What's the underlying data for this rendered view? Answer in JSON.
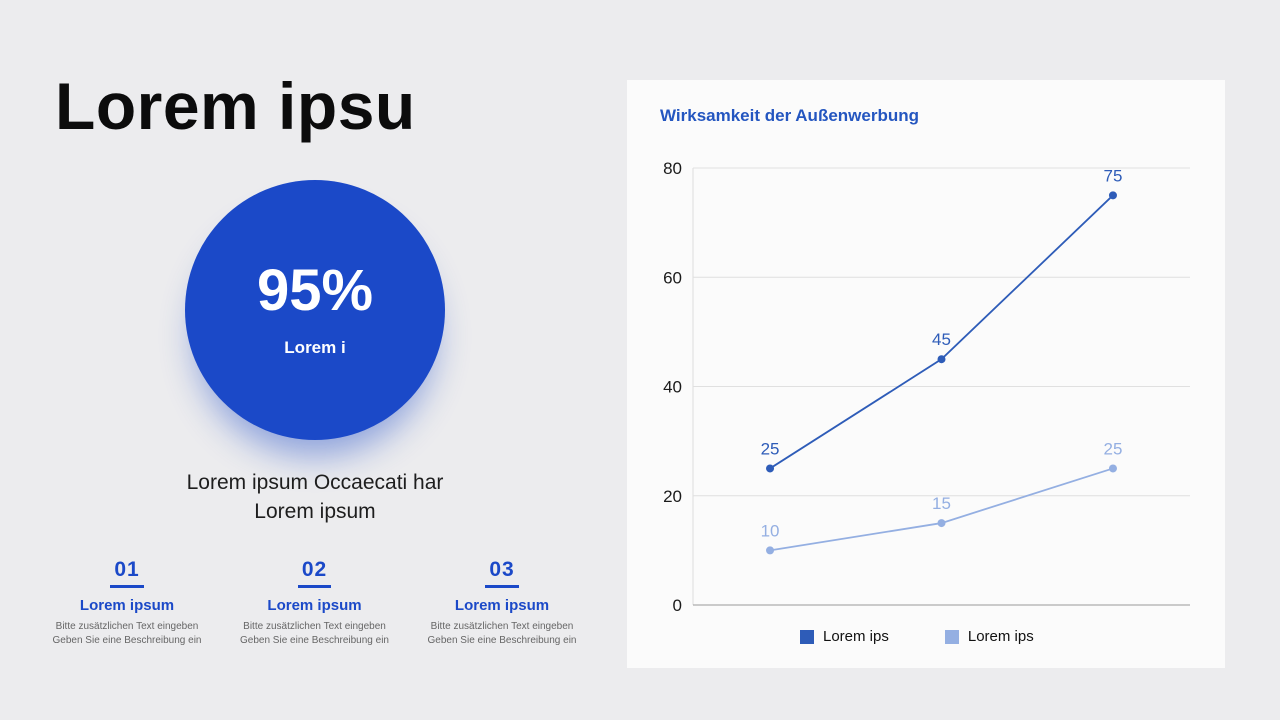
{
  "theme": {
    "accent": "#1b49c8",
    "title_blue": "#2456c0",
    "background": "#ececee",
    "card_background": "#fbfbfb"
  },
  "left": {
    "title": "Lorem ipsu",
    "circle": {
      "value": "95%",
      "label": "Lorem i"
    },
    "subtitle_line1": "Lorem ipsum Occaecati har",
    "subtitle_line2": "Lorem ipsum",
    "steps": [
      {
        "number": "01",
        "title": "Lorem ipsum",
        "desc1": "Bitte zusätzlichen Text eingeben",
        "desc2": "Geben Sie eine Beschreibung ein"
      },
      {
        "number": "02",
        "title": "Lorem ipsum",
        "desc1": "Bitte zusätzlichen Text eingeben",
        "desc2": "Geben Sie eine Beschreibung ein"
      },
      {
        "number": "03",
        "title": "Lorem ipsum",
        "desc1": "Bitte zusätzlichen Text eingeben",
        "desc2": "Geben Sie eine Beschreibung ein"
      }
    ]
  },
  "chart_card": {
    "title": "Wirksamkeit der Außenwerbung",
    "legend": [
      {
        "label": "Lorem ips"
      },
      {
        "label": "Lorem ips"
      }
    ]
  },
  "chart_data": {
    "type": "line",
    "title": "Wirksamkeit der Außenwerbung",
    "x_labels": [
      "",
      "",
      ""
    ],
    "series": [
      {
        "name": "Lorem ips",
        "values": [
          25,
          45,
          75
        ],
        "color": "#2e5cb8"
      },
      {
        "name": "Lorem ips",
        "values": [
          10,
          15,
          25
        ],
        "color": "#94afe2"
      }
    ],
    "ylim": [
      0,
      80
    ],
    "yticks": [
      0,
      20,
      40,
      60,
      80
    ],
    "grid": true,
    "legend_position": "bottom"
  }
}
